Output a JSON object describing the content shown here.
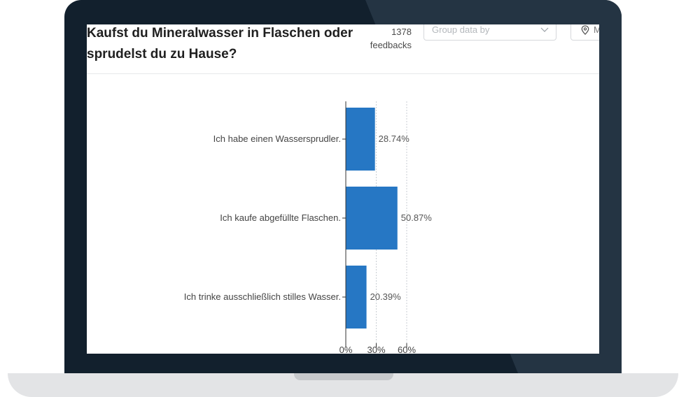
{
  "survey": {
    "question": "Kaufst du Mineralwasser in Flaschen oder sprudelst du zu Hause?",
    "feedback_count": "1378",
    "feedback_label": "feedbacks"
  },
  "controls": {
    "group_placeholder": "Group data by",
    "location_label": "M"
  },
  "colors": {
    "bar": "#2677c4",
    "frame": "#12202d",
    "frame_highlight": "#243443",
    "base": "#e3e4e6"
  },
  "icons": {
    "group_select": "chevron-down-icon",
    "location": "map-pin-icon"
  },
  "chart_data": {
    "type": "bar",
    "orientation": "horizontal",
    "categories": [
      "Ich habe einen Wassersprudler.",
      "Ich kaufe abgefüllte Flaschen.",
      "Ich trinke ausschließlich stilles Wasser."
    ],
    "values": [
      28.74,
      50.87,
      20.39
    ],
    "value_labels": [
      "28.74%",
      "50.87%",
      "20.39%"
    ],
    "xlim": [
      0,
      60
    ],
    "ticks": [
      0,
      30,
      60
    ],
    "tick_labels": [
      "0%",
      "30%",
      "60%"
    ],
    "grid": true,
    "title": "",
    "xlabel": "",
    "ylabel": ""
  }
}
